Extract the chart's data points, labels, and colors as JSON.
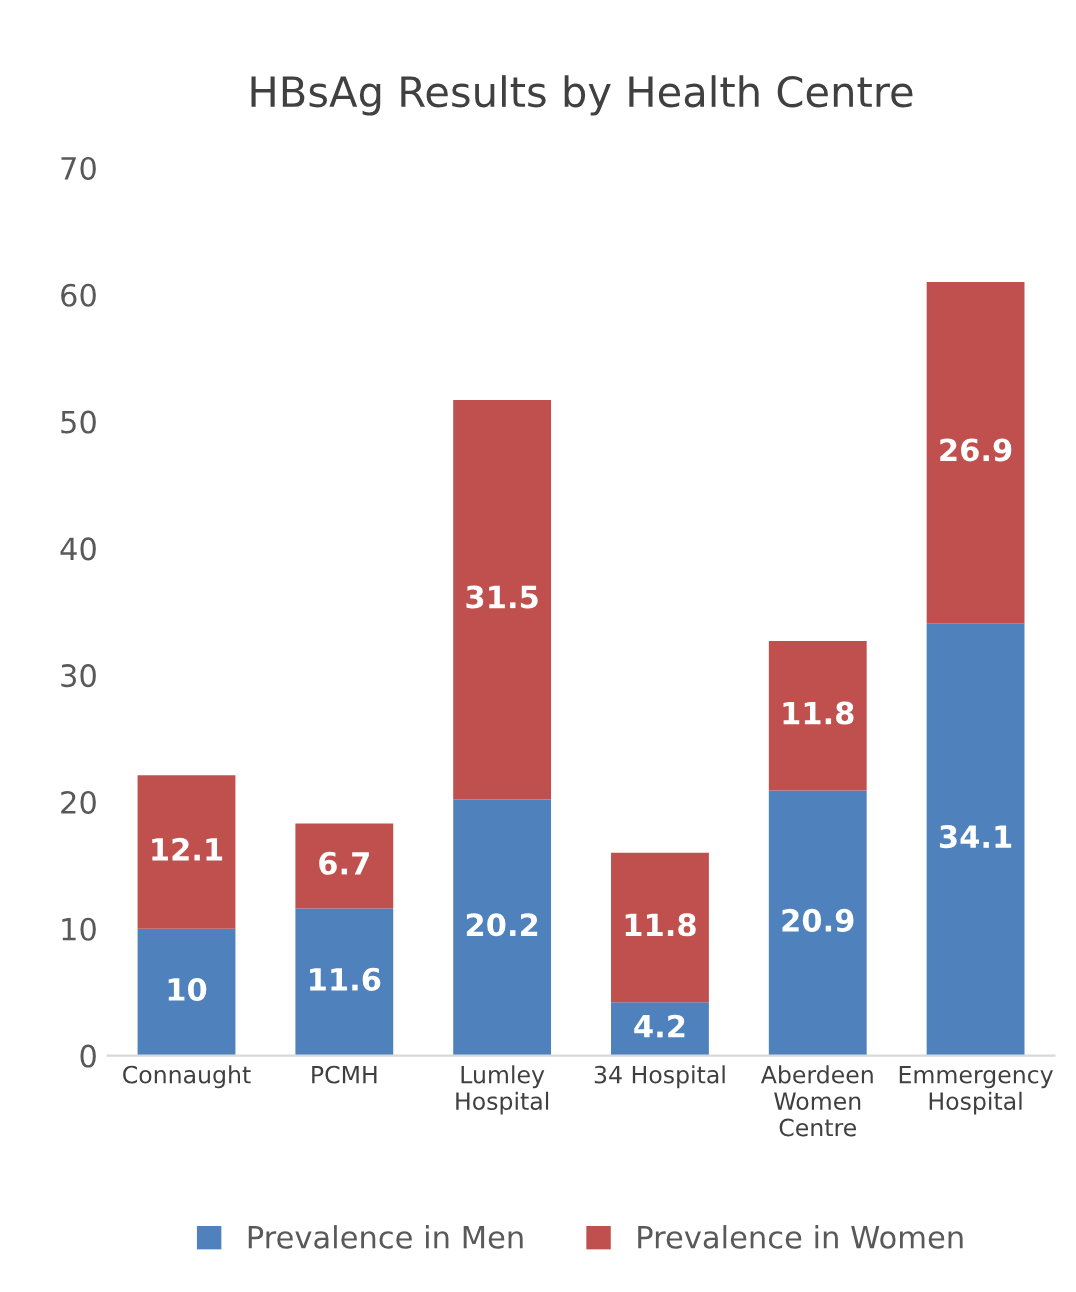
{
  "chart_data": {
    "type": "bar",
    "title": "HBsAg Results by Health Centre",
    "categories": [
      "Connaught",
      "PCMH",
      "Lumley\nHospital",
      "34 Hospital",
      "Aberdeen\nWomen\nCentre",
      "Emmergency\nHospital"
    ],
    "stacked": true,
    "series": [
      {
        "name": "Prevalence in Men",
        "color": "#4f81bd",
        "values": [
          10,
          11.6,
          20.2,
          4.2,
          20.9,
          34.1
        ]
      },
      {
        "name": "Prevalence in Women",
        "color": "#c0504d",
        "values": [
          12.1,
          6.7,
          31.5,
          11.8,
          11.8,
          26.9
        ]
      }
    ],
    "ylim": [
      0,
      70
    ],
    "yticks": [
      0,
      10,
      20,
      30,
      40,
      50,
      60,
      70
    ],
    "grid": false,
    "legend": "bottom",
    "data_labels": true
  }
}
